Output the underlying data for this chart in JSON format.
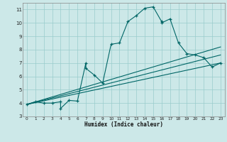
{
  "title": "",
  "xlabel": "Humidex (Indice chaleur)",
  "ylabel": "",
  "bg_color": "#cce8e8",
  "grid_color": "#99cccc",
  "line_color": "#006666",
  "xlim": [
    -0.5,
    23.5
  ],
  "ylim": [
    3,
    11.5
  ],
  "xticks": [
    0,
    1,
    2,
    3,
    4,
    5,
    6,
    7,
    8,
    9,
    10,
    11,
    12,
    13,
    14,
    15,
    16,
    17,
    18,
    19,
    20,
    21,
    22,
    23
  ],
  "yticks": [
    3,
    4,
    5,
    6,
    7,
    8,
    9,
    10,
    11
  ],
  "main_line_x": [
    0,
    1,
    2,
    3,
    4,
    4,
    5,
    6,
    7,
    7,
    8,
    9,
    10,
    11,
    12,
    13,
    14,
    15,
    16,
    16,
    17,
    18,
    19,
    20,
    21,
    22,
    23
  ],
  "main_line_y": [
    3.9,
    4.1,
    4.0,
    4.0,
    4.1,
    3.6,
    4.2,
    4.15,
    7.0,
    6.6,
    6.1,
    5.5,
    8.4,
    8.5,
    10.1,
    10.55,
    11.1,
    11.2,
    10.1,
    10.0,
    10.3,
    8.5,
    7.7,
    7.6,
    7.4,
    6.7,
    7.0
  ],
  "trend1_x": [
    0,
    23
  ],
  "trend1_y": [
    3.9,
    7.0
  ],
  "trend2_x": [
    0,
    23
  ],
  "trend2_y": [
    3.9,
    7.6
  ],
  "trend3_x": [
    0,
    23
  ],
  "trend3_y": [
    3.9,
    8.2
  ]
}
